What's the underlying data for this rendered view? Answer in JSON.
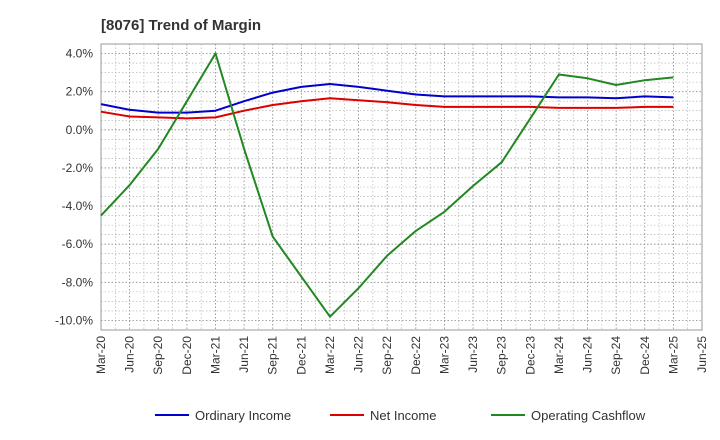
{
  "chart_data": {
    "type": "line",
    "title": "[8076]  Trend of Margin",
    "categories": [
      "Mar-20",
      "Jun-20",
      "Sep-20",
      "Dec-20",
      "Mar-21",
      "Jun-21",
      "Sep-21",
      "Dec-21",
      "Mar-22",
      "Jun-22",
      "Sep-22",
      "Dec-22",
      "Mar-23",
      "Jun-23",
      "Sep-23",
      "Dec-23",
      "Mar-24",
      "Jun-24",
      "Sep-24",
      "Dec-24",
      "Mar-25",
      "Jun-25"
    ],
    "ylim": [
      -10.5,
      4.5
    ],
    "yticks": [
      4.0,
      2.0,
      0.0,
      -2.0,
      -4.0,
      -6.0,
      -8.0,
      -10.0
    ],
    "ytick_labels": [
      "4.0%",
      "2.0%",
      "0.0%",
      "-2.0%",
      "-4.0%",
      "-6.0%",
      "-8.0%",
      "-10.0%"
    ],
    "grid": true,
    "legend_position": "bottom",
    "series": [
      {
        "name": "Ordinary Income",
        "color": "#0000cc",
        "values": [
          1.35,
          1.05,
          0.9,
          0.9,
          1.0,
          1.5,
          1.95,
          2.25,
          2.4,
          2.25,
          2.05,
          1.85,
          1.75,
          1.75,
          1.75,
          1.75,
          1.7,
          1.7,
          1.65,
          1.75,
          1.7,
          null
        ]
      },
      {
        "name": "Net Income",
        "color": "#dd0000",
        "values": [
          0.95,
          0.7,
          0.65,
          0.6,
          0.65,
          1.0,
          1.3,
          1.5,
          1.65,
          1.55,
          1.45,
          1.3,
          1.2,
          1.2,
          1.2,
          1.2,
          1.15,
          1.15,
          1.15,
          1.2,
          1.2,
          null
        ]
      },
      {
        "name": "Operating Cashflow",
        "color": "#228822",
        "values": [
          -4.5,
          -2.9,
          -1.0,
          1.5,
          4.0,
          -1.0,
          -5.6,
          null,
          -9.8,
          -8.3,
          -6.6,
          -5.3,
          -4.3,
          -2.95,
          -1.7,
          0.6,
          2.9,
          2.7,
          2.35,
          2.6,
          2.75,
          null
        ]
      }
    ]
  }
}
